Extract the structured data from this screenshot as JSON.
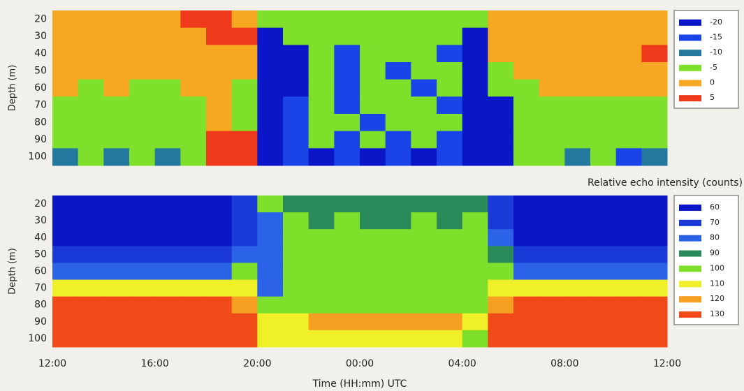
{
  "chart_data": [
    {
      "type": "heatmap",
      "y_label": "Depth (m)",
      "x": [
        0,
        1,
        2,
        3,
        4,
        5,
        6,
        7,
        8,
        9,
        10,
        11,
        12,
        13,
        14,
        15,
        16,
        17,
        18,
        19,
        20,
        21,
        22,
        23
      ],
      "y": [
        20,
        30,
        40,
        50,
        60,
        70,
        80,
        90,
        100
      ],
      "z": [
        [
          0,
          0,
          0,
          0,
          0,
          5,
          5,
          0,
          -5,
          -5,
          -5,
          -5,
          -5,
          -5,
          -5,
          -5,
          -5,
          0,
          0,
          0,
          0,
          0,
          0,
          0
        ],
        [
          0,
          0,
          0,
          0,
          0,
          0,
          5,
          5,
          -20,
          -5,
          -5,
          -5,
          -5,
          -5,
          -5,
          -5,
          -20,
          0,
          0,
          0,
          0,
          0,
          0,
          0
        ],
        [
          0,
          0,
          0,
          0,
          0,
          0,
          0,
          0,
          -20,
          -20,
          -5,
          -15,
          -5,
          -5,
          -5,
          -15,
          -20,
          0,
          0,
          0,
          0,
          0,
          0,
          5
        ],
        [
          0,
          0,
          0,
          0,
          0,
          0,
          0,
          0,
          -20,
          -20,
          -5,
          -15,
          -5,
          -15,
          -5,
          -5,
          -20,
          -5,
          0,
          0,
          0,
          0,
          0,
          0
        ],
        [
          0,
          -5,
          0,
          -5,
          -5,
          0,
          0,
          -5,
          -20,
          -20,
          -5,
          -15,
          -5,
          -5,
          -15,
          -5,
          -20,
          -5,
          -5,
          0,
          0,
          0,
          0,
          0
        ],
        [
          -5,
          -5,
          -5,
          -5,
          -5,
          -5,
          0,
          -5,
          -20,
          -15,
          -5,
          -15,
          -5,
          -5,
          -5,
          -15,
          -20,
          -20,
          -5,
          -5,
          -5,
          -5,
          -5,
          -5
        ],
        [
          -5,
          -5,
          -5,
          -5,
          -5,
          -5,
          0,
          -5,
          -20,
          -15,
          -5,
          -5,
          -15,
          -5,
          -5,
          -5,
          -20,
          -20,
          -5,
          -5,
          -5,
          -5,
          -5,
          -5
        ],
        [
          -5,
          -5,
          -5,
          -5,
          -5,
          -5,
          5,
          5,
          -20,
          -15,
          -5,
          -15,
          -5,
          -15,
          -5,
          -15,
          -20,
          -20,
          -5,
          -5,
          -5,
          -5,
          -5,
          -5
        ],
        [
          -10,
          -5,
          -10,
          -5,
          -10,
          -5,
          5,
          5,
          -20,
          -15,
          -20,
          -15,
          -20,
          -15,
          -20,
          -15,
          -20,
          -20,
          -5,
          -5,
          -10,
          -5,
          -15,
          -10
        ]
      ],
      "xlim": [
        0,
        24
      ],
      "ylim": [
        15,
        105
      ],
      "y_inverted": true,
      "yticks": [
        20,
        30,
        40,
        50,
        60,
        70,
        80,
        90,
        100
      ],
      "levels": [
        -20,
        -15,
        -10,
        -5,
        0,
        5
      ],
      "colors": [
        "#0a16c8",
        "#1a44e8",
        "#23789e",
        "#7ee02a",
        "#f7a823",
        "#ee3a1a"
      ]
    },
    {
      "type": "heatmap",
      "y_label": "Depth (m)",
      "x_label": "Time (HH:mm) UTC",
      "colorbar_label": "Relative echo intensity (counts)",
      "x": [
        0,
        1,
        2,
        3,
        4,
        5,
        6,
        7,
        8,
        9,
        10,
        11,
        12,
        13,
        14,
        15,
        16,
        17,
        18,
        19,
        20,
        21,
        22,
        23
      ],
      "y": [
        20,
        30,
        40,
        50,
        60,
        70,
        80,
        90,
        100
      ],
      "z": [
        [
          60,
          60,
          60,
          60,
          60,
          60,
          60,
          70,
          100,
          90,
          90,
          90,
          90,
          90,
          90,
          90,
          90,
          70,
          60,
          60,
          60,
          60,
          60,
          60
        ],
        [
          60,
          60,
          60,
          60,
          60,
          60,
          60,
          70,
          80,
          100,
          90,
          100,
          90,
          90,
          100,
          90,
          100,
          70,
          60,
          60,
          60,
          60,
          60,
          60
        ],
        [
          60,
          60,
          60,
          60,
          60,
          60,
          60,
          70,
          80,
          100,
          100,
          100,
          100,
          100,
          100,
          100,
          100,
          80,
          60,
          60,
          60,
          60,
          60,
          60
        ],
        [
          70,
          70,
          70,
          70,
          70,
          70,
          70,
          80,
          80,
          100,
          100,
          100,
          100,
          100,
          100,
          100,
          100,
          90,
          70,
          70,
          70,
          70,
          70,
          70
        ],
        [
          80,
          80,
          80,
          80,
          80,
          80,
          80,
          100,
          80,
          100,
          100,
          100,
          100,
          100,
          100,
          100,
          100,
          100,
          80,
          80,
          80,
          80,
          80,
          80
        ],
        [
          110,
          110,
          110,
          110,
          110,
          110,
          110,
          110,
          80,
          100,
          100,
          100,
          100,
          100,
          100,
          100,
          100,
          110,
          110,
          110,
          110,
          110,
          110,
          110
        ],
        [
          130,
          130,
          130,
          130,
          130,
          130,
          130,
          120,
          100,
          100,
          100,
          100,
          100,
          100,
          100,
          100,
          100,
          120,
          130,
          130,
          130,
          130,
          130,
          130
        ],
        [
          130,
          130,
          130,
          130,
          130,
          130,
          130,
          130,
          110,
          110,
          120,
          120,
          120,
          120,
          120,
          120,
          110,
          130,
          130,
          130,
          130,
          130,
          130,
          130
        ],
        [
          130,
          130,
          130,
          130,
          130,
          130,
          130,
          130,
          110,
          110,
          110,
          110,
          110,
          110,
          110,
          110,
          100,
          130,
          130,
          130,
          130,
          130,
          130,
          130
        ]
      ],
      "xlim": [
        0,
        24
      ],
      "ylim": [
        15,
        105
      ],
      "y_inverted": true,
      "yticks": [
        20,
        30,
        40,
        50,
        60,
        70,
        80,
        90,
        100
      ],
      "xticks": [
        {
          "value": 0,
          "label": "12:00"
        },
        {
          "value": 4,
          "label": "16:00"
        },
        {
          "value": 8,
          "label": "20:00"
        },
        {
          "value": 12,
          "label": "00:00"
        },
        {
          "value": 16,
          "label": "04:00"
        },
        {
          "value": 20,
          "label": "08:00"
        },
        {
          "value": 24,
          "label": "12:00"
        }
      ],
      "levels": [
        60,
        70,
        80,
        90,
        100,
        110,
        120,
        130
      ],
      "colors": [
        "#0a16c8",
        "#1a3ad8",
        "#2a62e8",
        "#2a8a5a",
        "#7ee02a",
        "#f0f028",
        "#f5a020",
        "#f04a18"
      ]
    }
  ]
}
